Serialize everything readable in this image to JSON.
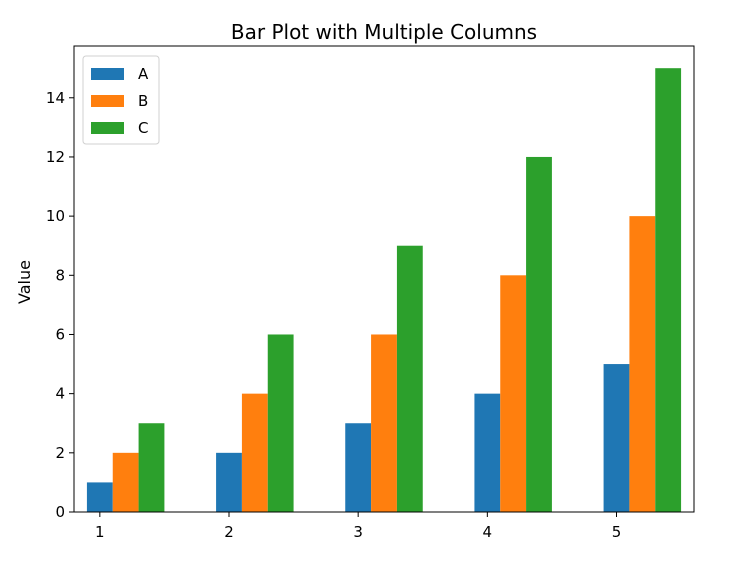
{
  "chart_data": {
    "type": "bar",
    "title": "Bar Plot with Multiple Columns",
    "xlabel": "",
    "ylabel": "Value",
    "categories": [
      "1",
      "2",
      "3",
      "4",
      "5"
    ],
    "series": [
      {
        "name": "A",
        "values": [
          1,
          2,
          3,
          4,
          5
        ],
        "color": "#1f77b4"
      },
      {
        "name": "B",
        "values": [
          2,
          4,
          6,
          8,
          10
        ],
        "color": "#ff7f0e"
      },
      {
        "name": "C",
        "values": [
          3,
          6,
          9,
          12,
          15
        ],
        "color": "#2ca02c"
      }
    ],
    "ylim": [
      0,
      15.75
    ],
    "yticks": [
      0,
      2,
      4,
      6,
      8,
      10,
      12,
      14
    ],
    "grid": false,
    "legend_position": "top-left"
  }
}
